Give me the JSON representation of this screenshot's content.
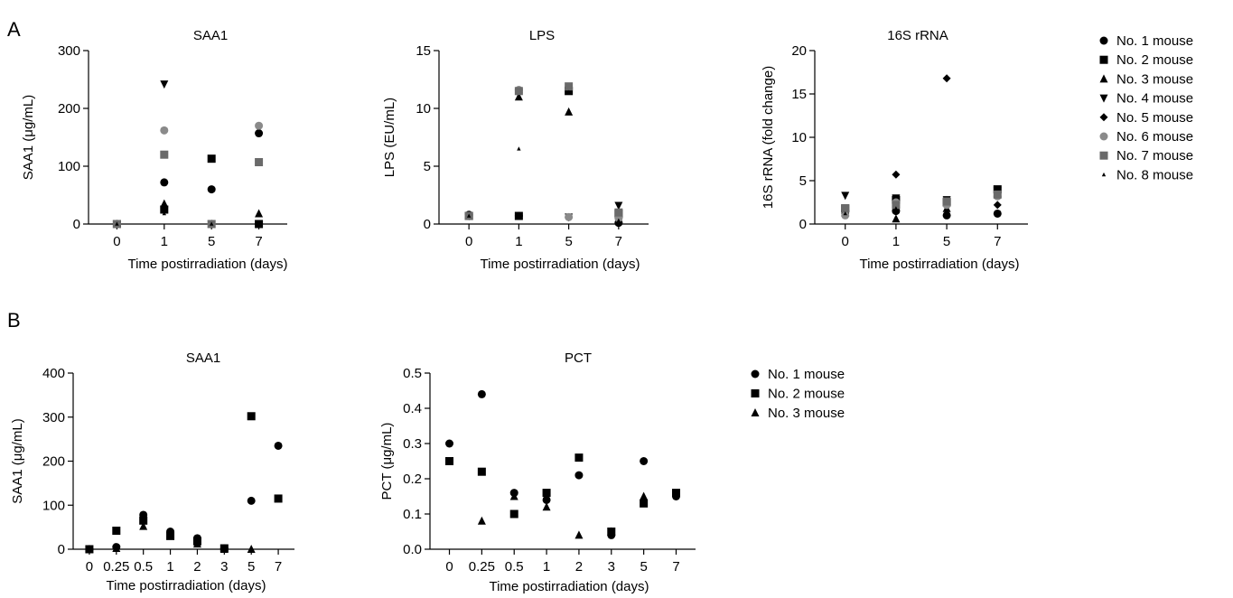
{
  "panels": [
    {
      "letter": "A"
    },
    {
      "letter": "B"
    }
  ],
  "colors": {
    "No. 1 mouse": "#000000",
    "No. 2 mouse": "#000000",
    "No. 3 mouse": "#000000",
    "No. 4 mouse": "#000000",
    "No. 5 mouse": "#000000",
    "No. 6 mouse": "#8a8a8a",
    "No. 7 mouse": "#6a6a6a",
    "No. 8 mouse": "#000000"
  },
  "legends": [
    {
      "panel": "A",
      "entries": [
        {
          "label": "No. 1 mouse",
          "marker": "circle"
        },
        {
          "label": "No. 2 mouse",
          "marker": "square"
        },
        {
          "label": "No. 3 mouse",
          "marker": "triangle-up"
        },
        {
          "label": "No. 4 mouse",
          "marker": "triangle-down"
        },
        {
          "label": "No. 5 mouse",
          "marker": "diamond"
        },
        {
          "label": "No. 6 mouse",
          "marker": "circle-gray"
        },
        {
          "label": "No. 7 mouse",
          "marker": "square-gray"
        },
        {
          "label": "No. 8 mouse",
          "marker": "small-triangle"
        }
      ]
    },
    {
      "panel": "B",
      "entries": [
        {
          "label": "No. 1 mouse",
          "marker": "circle"
        },
        {
          "label": "No. 2 mouse",
          "marker": "square"
        },
        {
          "label": "No. 3 mouse",
          "marker": "triangle-up"
        }
      ]
    }
  ],
  "chart_data": [
    {
      "type": "scatter",
      "panel": "A",
      "title": "SAA1",
      "xlabel": "Time postirradiation (days)",
      "ylabel": "SAA1 (μg/mL)",
      "categories": [
        "0",
        "1",
        "5",
        "7"
      ],
      "ylim": [
        0,
        300
      ],
      "yticks": [
        0,
        100,
        200,
        300
      ],
      "series": [
        {
          "name": "No. 1 mouse",
          "marker": "circle",
          "values": [
            0,
            72,
            60,
            157
          ]
        },
        {
          "name": "No. 2 mouse",
          "marker": "square",
          "values": [
            0,
            25,
            113,
            0
          ]
        },
        {
          "name": "No. 3 mouse",
          "marker": "triangle-up",
          "values": [
            0,
            35,
            0,
            18
          ]
        },
        {
          "name": "No. 4 mouse",
          "marker": "triangle-down",
          "values": [
            0,
            242,
            0,
            0
          ]
        },
        {
          "name": "No. 5 mouse",
          "marker": "diamond",
          "values": [
            0,
            30,
            0,
            0
          ]
        },
        {
          "name": "No. 6 mouse",
          "marker": "circle-gray",
          "values": [
            0,
            162,
            0,
            170
          ]
        },
        {
          "name": "No. 7 mouse",
          "marker": "square-gray",
          "values": [
            0,
            120,
            0,
            107
          ]
        },
        {
          "name": "No. 8 mouse",
          "marker": "small-triangle",
          "values": [
            0,
            18,
            0,
            0
          ]
        }
      ]
    },
    {
      "type": "scatter",
      "panel": "A",
      "title": "LPS",
      "xlabel": "Time postirradiation (days)",
      "ylabel": "LPS (EU/mL)",
      "categories": [
        "0",
        "1",
        "5",
        "7"
      ],
      "ylim": [
        0,
        15
      ],
      "yticks": [
        0,
        5,
        10,
        15
      ],
      "series": [
        {
          "name": "No. 1 mouse",
          "marker": "circle",
          "values": [
            0.8,
            0.7,
            11.8,
            0.1
          ]
        },
        {
          "name": "No. 2 mouse",
          "marker": "square",
          "values": [
            0.7,
            0.7,
            11.5,
            0.9
          ]
        },
        {
          "name": "No. 3 mouse",
          "marker": "triangle-up",
          "values": [
            0.7,
            11.0,
            9.7,
            0.8
          ]
        },
        {
          "name": "No. 4 mouse",
          "marker": "triangle-down",
          "values": [
            0.7,
            11.3,
            0.6,
            1.6
          ]
        },
        {
          "name": "No. 5 mouse",
          "marker": "diamond",
          "values": [
            0.7,
            11.4,
            0.6,
            0.1
          ]
        },
        {
          "name": "No. 6 mouse",
          "marker": "circle-gray",
          "values": [
            0.7,
            11.6,
            0.6,
            0.5
          ]
        },
        {
          "name": "No. 7 mouse",
          "marker": "square-gray",
          "values": [
            0.7,
            11.5,
            11.9,
            1.0
          ]
        },
        {
          "name": "No. 8 mouse",
          "marker": "small-triangle",
          "values": [
            0.7,
            6.5,
            11.4,
            0.3
          ]
        }
      ]
    },
    {
      "type": "scatter",
      "panel": "A",
      "title": "16S rRNA",
      "xlabel": "Time postirradiation (days)",
      "ylabel": "16S rRNA (fold change)",
      "categories": [
        "0",
        "1",
        "5",
        "7"
      ],
      "ylim": [
        0,
        20
      ],
      "yticks": [
        0,
        5,
        10,
        15,
        20
      ],
      "series": [
        {
          "name": "No. 1 mouse",
          "marker": "circle",
          "values": [
            1.5,
            1.5,
            1.0,
            1.2
          ]
        },
        {
          "name": "No. 2 mouse",
          "marker": "square",
          "values": [
            1.8,
            2.8,
            2.5,
            4.0
          ]
        },
        {
          "name": "No. 3 mouse",
          "marker": "triangle-up",
          "values": [
            1.3,
            0.6,
            1.8,
            3.5
          ]
        },
        {
          "name": "No. 4 mouse",
          "marker": "triangle-down",
          "values": [
            3.3,
            3.0,
            2.8,
            3.8
          ]
        },
        {
          "name": "No. 5 mouse",
          "marker": "diamond",
          "values": [
            1.2,
            5.7,
            16.8,
            2.2
          ]
        },
        {
          "name": "No. 6 mouse",
          "marker": "circle-gray",
          "values": [
            1.0,
            2.5,
            2.2,
            3.2
          ]
        },
        {
          "name": "No. 7 mouse",
          "marker": "square-gray",
          "values": [
            1.8,
            2.2,
            2.6,
            3.4
          ]
        },
        {
          "name": "No. 8 mouse",
          "marker": "small-triangle",
          "values": [
            1.2,
            1.8,
            1.4,
            1.0
          ]
        }
      ]
    },
    {
      "type": "scatter",
      "panel": "B",
      "title": "SAA1",
      "xlabel": "Time postirradiation (days)",
      "ylabel": "SAA1 (μg/mL)",
      "categories": [
        "0",
        "0.25",
        "0.5",
        "1",
        "2",
        "3",
        "5",
        "7"
      ],
      "ylim": [
        0,
        400
      ],
      "yticks": [
        0,
        100,
        200,
        300,
        400
      ],
      "series": [
        {
          "name": "No. 1 mouse",
          "marker": "circle",
          "values": [
            0,
            5,
            78,
            40,
            25,
            2,
            110,
            235
          ]
        },
        {
          "name": "No. 2 mouse",
          "marker": "square",
          "values": [
            0,
            42,
            65,
            30,
            18,
            2,
            302,
            115
          ]
        },
        {
          "name": "No. 3 mouse",
          "marker": "triangle-up",
          "values": [
            0,
            2,
            52,
            35,
            12,
            0,
            0,
            null
          ]
        }
      ]
    },
    {
      "type": "scatter",
      "panel": "B",
      "title": "PCT",
      "xlabel": "Time postirradiation (days)",
      "ylabel": "PCT (μg/mL)",
      "categories": [
        "0",
        "0.25",
        "0.5",
        "1",
        "2",
        "3",
        "5",
        "7"
      ],
      "ylim": [
        0,
        0.5
      ],
      "yticks": [
        "0.0",
        "0.1",
        "0.2",
        "0.3",
        "0.4",
        "0.5"
      ],
      "series": [
        {
          "name": "No. 1 mouse",
          "marker": "circle",
          "values": [
            0.3,
            0.44,
            0.16,
            0.14,
            0.21,
            0.04,
            0.25,
            0.15
          ]
        },
        {
          "name": "No. 2 mouse",
          "marker": "square",
          "values": [
            0.25,
            0.22,
            0.1,
            0.16,
            0.26,
            0.05,
            0.13,
            0.16
          ]
        },
        {
          "name": "No. 3 mouse",
          "marker": "triangle-up",
          "values": [
            null,
            0.08,
            0.15,
            0.12,
            0.04,
            0.05,
            0.15,
            null
          ]
        }
      ]
    }
  ]
}
